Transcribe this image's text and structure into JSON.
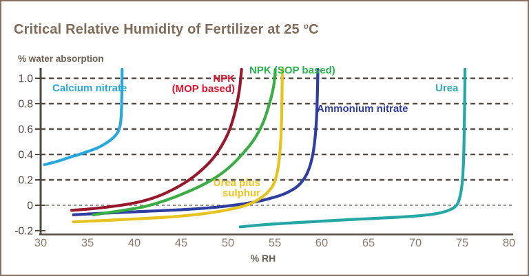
{
  "title": {
    "prefix": "Critical Relative Humidity of Fertilizer at 25 ",
    "sup": "o",
    "suffix": "C"
  },
  "axes": {
    "y_axis_label": "% water absorption",
    "x_axis_label": "% RH"
  },
  "chart_data": {
    "type": "line",
    "title": "Critical Relative Humidity of Fertilizer at 25 °C",
    "xlabel": "% RH",
    "ylabel": "% water absorption",
    "xlim": [
      30,
      80
    ],
    "ylim": [
      -0.2,
      1.0
    ],
    "x_ticks": [
      30,
      35,
      40,
      45,
      50,
      55,
      60,
      65,
      70,
      75,
      80
    ],
    "y_ticks": [
      1.0,
      0.8,
      0.6,
      0.4,
      0.2,
      0,
      -0.2
    ],
    "y_tick_labels": [
      "1.0",
      "0.8",
      "0.6",
      "0.4",
      "0.2",
      "0",
      "-0.2"
    ],
    "grid": "horizontal dashed lines at 0 to 1.0 every 0.2",
    "legend_position": "inline labels beside each curve",
    "styles": {
      "grid_color": "#55504b",
      "zero_line_color": "#6e6862",
      "axis_color": "#514840",
      "x_tick_label_color": "#8d7a6b",
      "y_tick_label_color": "#4a4540",
      "frame_border_color": "#8a7060",
      "title_color": "#7f6b57"
    },
    "series": [
      {
        "name": "Calcium nitrate",
        "label": "Calcium nitrate",
        "color": "#29a8e0",
        "label_color": "#29a8e0",
        "points": [
          [
            30.4,
            0.32
          ],
          [
            31.5,
            0.34
          ],
          [
            33,
            0.375
          ],
          [
            34.5,
            0.41
          ],
          [
            36,
            0.45
          ],
          [
            37,
            0.49
          ],
          [
            37.8,
            0.535
          ],
          [
            38.3,
            0.585
          ],
          [
            38.55,
            0.66
          ],
          [
            38.65,
            0.8
          ],
          [
            38.7,
            1.07
          ]
        ]
      },
      {
        "name": "NPK (MOP based)",
        "label": "NPK\n(MOP based)",
        "color": "#98182c",
        "label_color": "#e0142d",
        "points": [
          [
            33.3,
            -0.04
          ],
          [
            35,
            -0.03
          ],
          [
            37,
            -0.015
          ],
          [
            39,
            0.005
          ],
          [
            41,
            0.035
          ],
          [
            43,
            0.085
          ],
          [
            45,
            0.16
          ],
          [
            46.5,
            0.235
          ],
          [
            48,
            0.335
          ],
          [
            49,
            0.43
          ],
          [
            50,
            0.565
          ],
          [
            50.7,
            0.72
          ],
          [
            51.2,
            0.9
          ],
          [
            51.45,
            1.07
          ]
        ]
      },
      {
        "name": "NPK (SOP based)",
        "label": "NPK (SOP based)",
        "color": "#3aad44",
        "label_color": "#27b44e",
        "points": [
          [
            35.6,
            -0.075
          ],
          [
            37,
            -0.06
          ],
          [
            39,
            -0.038
          ],
          [
            41,
            -0.012
          ],
          [
            43,
            0.03
          ],
          [
            45,
            0.085
          ],
          [
            47,
            0.15
          ],
          [
            48.5,
            0.21
          ],
          [
            50,
            0.29
          ],
          [
            51.5,
            0.4
          ],
          [
            52.8,
            0.52
          ],
          [
            53.8,
            0.66
          ],
          [
            54.5,
            0.82
          ],
          [
            54.9,
            0.95
          ],
          [
            55.05,
            1.07
          ]
        ]
      },
      {
        "name": "Urea plus sulphur",
        "label": "Urea plus\nsulphur",
        "color": "#e6c31f",
        "label_color": "#f0c41d",
        "points": [
          [
            33.5,
            -0.13
          ],
          [
            36,
            -0.122
          ],
          [
            39,
            -0.112
          ],
          [
            42,
            -0.1
          ],
          [
            45,
            -0.085
          ],
          [
            47.5,
            -0.065
          ],
          [
            49.5,
            -0.042
          ],
          [
            51.5,
            -0.01
          ],
          [
            53,
            0.035
          ],
          [
            54.2,
            0.1
          ],
          [
            55,
            0.19
          ],
          [
            55.45,
            0.35
          ],
          [
            55.7,
            0.62
          ],
          [
            55.8,
            1.07
          ]
        ]
      },
      {
        "name": "Ammonium nitrate",
        "label": "Ammonium nitrate",
        "color": "#2e3da0",
        "label_color": "#2e3da0",
        "points": [
          [
            33.5,
            -0.075
          ],
          [
            36,
            -0.065
          ],
          [
            39,
            -0.055
          ],
          [
            42,
            -0.045
          ],
          [
            45,
            -0.035
          ],
          [
            48,
            -0.02
          ],
          [
            50,
            -0.005
          ],
          [
            52,
            0.015
          ],
          [
            54,
            0.045
          ],
          [
            56,
            0.09
          ],
          [
            57.5,
            0.155
          ],
          [
            58.5,
            0.26
          ],
          [
            59.1,
            0.42
          ],
          [
            59.45,
            0.68
          ],
          [
            59.6,
            1.07
          ]
        ]
      },
      {
        "name": "Urea",
        "label": "Urea",
        "color": "#25a8a5",
        "label_color": "#2aa9b0",
        "points": [
          [
            51.3,
            -0.17
          ],
          [
            54,
            -0.152
          ],
          [
            57,
            -0.138
          ],
          [
            60,
            -0.125
          ],
          [
            63,
            -0.113
          ],
          [
            66,
            -0.102
          ],
          [
            69,
            -0.09
          ],
          [
            71,
            -0.078
          ],
          [
            72.5,
            -0.062
          ],
          [
            73.6,
            -0.038
          ],
          [
            74.4,
            0
          ],
          [
            74.8,
            0.08
          ],
          [
            75.05,
            0.22
          ],
          [
            75.2,
            0.5
          ],
          [
            75.3,
            1.07
          ]
        ]
      }
    ]
  }
}
